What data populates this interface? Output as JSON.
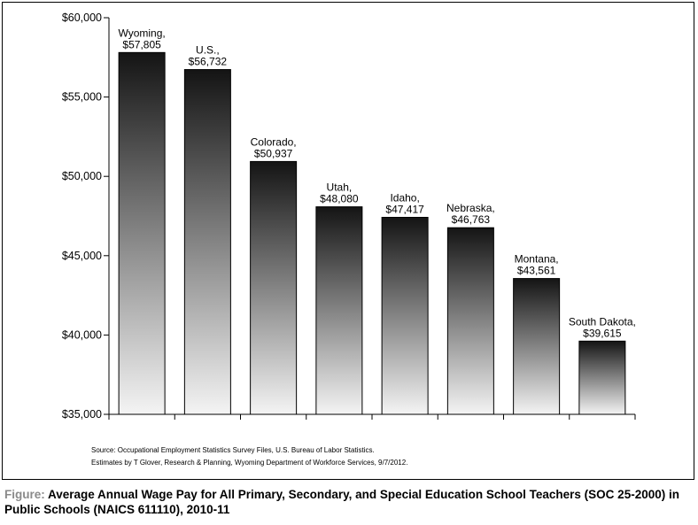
{
  "chart_data": {
    "type": "bar",
    "categories": [
      "Wyoming",
      "U.S.",
      "Colorado",
      "Utah",
      "Idaho",
      "Nebraska",
      "Montana",
      "South Dakota"
    ],
    "values": [
      57805,
      56732,
      50937,
      48080,
      47417,
      46763,
      43561,
      39615
    ],
    "data_labels": [
      [
        "Wyoming,",
        "$57,805"
      ],
      [
        "U.S.,",
        "$56,732"
      ],
      [
        "Colorado,",
        "$50,937"
      ],
      [
        "Utah,",
        "$48,080"
      ],
      [
        "Idaho,",
        "$47,417"
      ],
      [
        "Nebraska,",
        "$46,763"
      ],
      [
        "Montana,",
        "$43,561"
      ],
      [
        "South Dakota,",
        "$39,615"
      ]
    ],
    "ylim": [
      35000,
      60000
    ],
    "yticks": [
      35000,
      40000,
      45000,
      50000,
      55000,
      60000
    ],
    "ytick_labels": [
      "$35,000",
      "$40,000",
      "$45,000",
      "$50,000",
      "$55,000",
      "$60,000"
    ],
    "grid": false,
    "bar_gradient": {
      "top": "#141414",
      "bottom": "#f4f4f4"
    }
  },
  "notes": {
    "source": "Source: Occupational Employment Statistics Survey Files, U.S. Bureau of Labor Statistics.",
    "estimates": "Estimates by T Glover, Research & Planning, Wyoming Department of Workforce Services, 9/7/2012."
  },
  "caption": {
    "prefix": "Figure:",
    "text": "Average Annual Wage Pay for All Primary, Secondary, and Special Education School Teachers (SOC 25-2000) in Public Schools (NAICS 611110), 2010-11"
  }
}
